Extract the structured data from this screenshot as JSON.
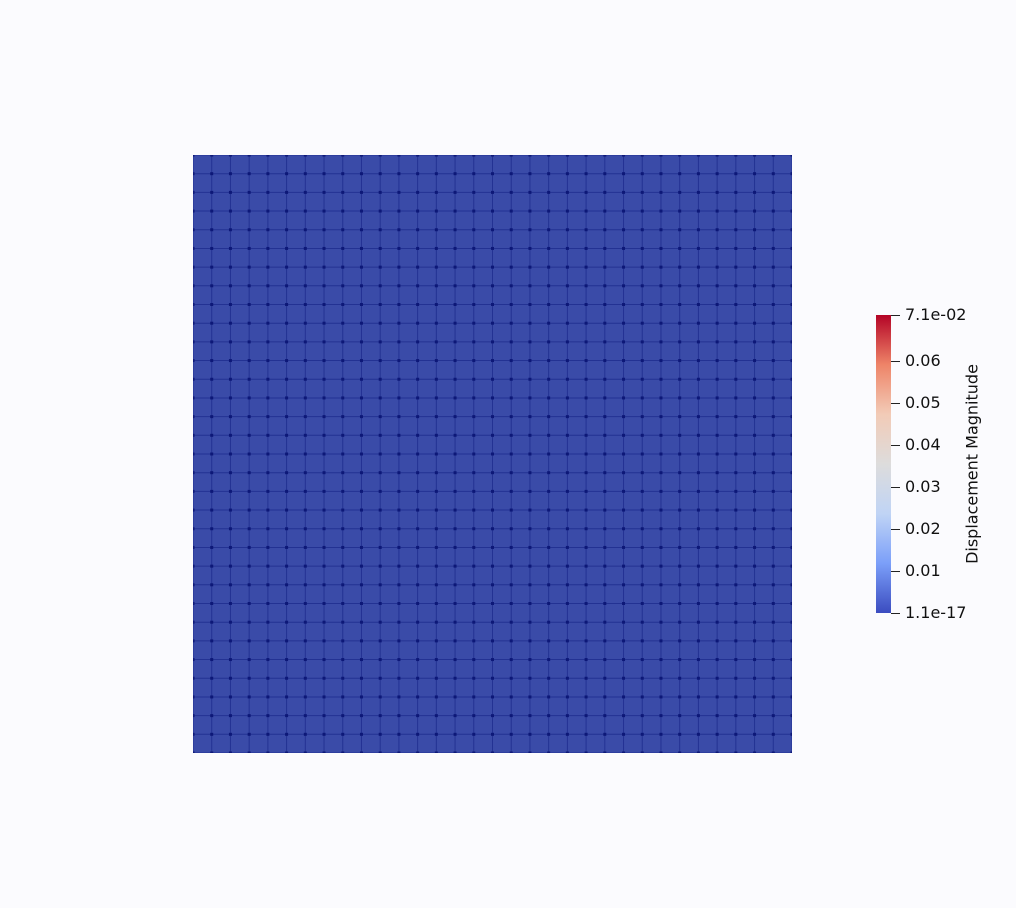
{
  "mesh": {
    "grid_divisions": 32,
    "fill_color": "#3a4ba8",
    "line_color": "#1c2a8c",
    "node_color": "#0d1878"
  },
  "colorbar": {
    "title": "Displacement Magnitude",
    "min_value": 1.1e-17,
    "max_value": 0.071,
    "colormap": [
      "#3b4cc0",
      "#7b9ff9",
      "#c0d4f5",
      "#dddcdc",
      "#f2cbb7",
      "#ee8468",
      "#b40426"
    ],
    "ticks": [
      {
        "value": 0.071,
        "label": "7.1e-02"
      },
      {
        "value": 0.06,
        "label": "0.06"
      },
      {
        "value": 0.05,
        "label": "0.05"
      },
      {
        "value": 0.04,
        "label": "0.04"
      },
      {
        "value": 0.03,
        "label": "0.03"
      },
      {
        "value": 0.02,
        "label": "0.02"
      },
      {
        "value": 0.01,
        "label": "0.01"
      },
      {
        "value": 1.1e-17,
        "label": "1.1e-17"
      }
    ]
  }
}
